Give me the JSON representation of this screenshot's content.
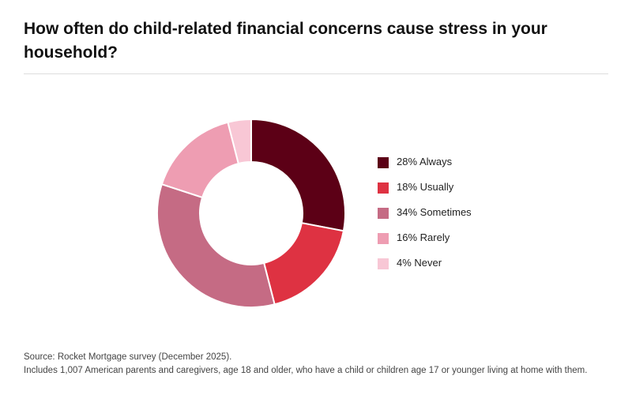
{
  "chart_data": {
    "type": "donut",
    "title": "How often do child-related financial concerns cause stress in your household?",
    "categories": [
      "Always",
      "Usually",
      "Sometimes",
      "Rarely",
      "Never"
    ],
    "values": [
      28,
      18,
      34,
      16,
      4
    ],
    "value_labels": [
      "28%",
      "18%",
      "34%",
      "16%",
      "4%"
    ],
    "colors": [
      "#5c0016",
      "#de3242",
      "#c56b84",
      "#ee9db2",
      "#f8c7d5"
    ],
    "source": "Source: Rocket Mortgage survey (December 2025).",
    "note": "Includes 1,007 American parents and caregivers, age 18 and older, who have a child or children age 17 or younger living at home with them."
  }
}
